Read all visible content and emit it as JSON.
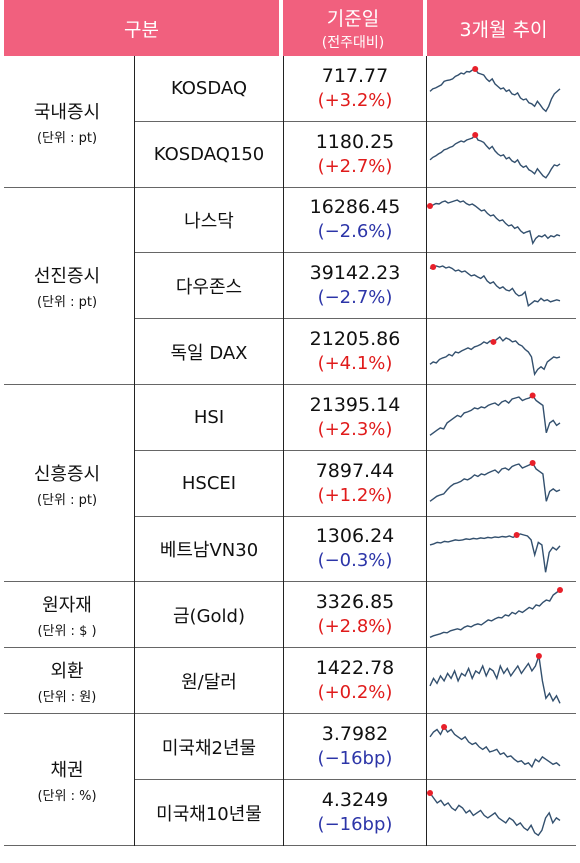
{
  "header": {
    "category": "구분",
    "base_date": "기준일",
    "base_date_sub": "(전주대비)",
    "trend": "3개월 추이"
  },
  "colors": {
    "header_bg": "#f1607e",
    "up": "#e01b1b",
    "down": "#2c35a8",
    "spark_line": "#33506e",
    "spark_dot": "#e8202a"
  },
  "groups": [
    {
      "name": "국내증시",
      "unit": "(단위 : pt)",
      "rows": [
        {
          "name": "KOSDAQ",
          "value": "717.77",
          "change": "(+3.2%)",
          "dir": "up",
          "trend": [
            0.55,
            0.5,
            0.48,
            0.45,
            0.42,
            0.35,
            0.33,
            0.32,
            0.3,
            0.25,
            0.22,
            0.18,
            0.2,
            0.15,
            0.16,
            0.12,
            0.1,
            0.18,
            0.2,
            0.22,
            0.3,
            0.35,
            0.3,
            0.4,
            0.45,
            0.5,
            0.48,
            0.55,
            0.52,
            0.6,
            0.62,
            0.58,
            0.68,
            0.72,
            0.7,
            0.78,
            0.8,
            0.85,
            0.75,
            0.82,
            0.9,
            0.95,
            0.85,
            0.7,
            0.6,
            0.55,
            0.5
          ],
          "peak_index": 16
        },
        {
          "name": "KOSDAQ150",
          "value": "1180.25",
          "change": "(+2.7%)",
          "dir": "up",
          "trend": [
            0.6,
            0.55,
            0.52,
            0.48,
            0.45,
            0.4,
            0.38,
            0.35,
            0.33,
            0.28,
            0.25,
            0.22,
            0.24,
            0.2,
            0.18,
            0.16,
            0.1,
            0.2,
            0.22,
            0.25,
            0.32,
            0.38,
            0.33,
            0.42,
            0.48,
            0.52,
            0.5,
            0.58,
            0.55,
            0.62,
            0.65,
            0.6,
            0.7,
            0.75,
            0.72,
            0.8,
            0.83,
            0.88,
            0.78,
            0.85,
            0.92,
            0.96,
            0.88,
            0.78,
            0.7,
            0.72,
            0.68
          ],
          "peak_index": 16
        }
      ]
    },
    {
      "name": "선진증시",
      "unit": "(단위 : pt)",
      "rows": [
        {
          "name": "나스닥",
          "value": "16286.45",
          "change": "(−2.6%)",
          "dir": "down",
          "trend": [
            0.2,
            0.18,
            0.15,
            0.16,
            0.12,
            0.1,
            0.14,
            0.12,
            0.1,
            0.08,
            0.12,
            0.1,
            0.15,
            0.18,
            0.16,
            0.2,
            0.25,
            0.3,
            0.28,
            0.35,
            0.4,
            0.38,
            0.45,
            0.5,
            0.48,
            0.55,
            0.6,
            0.58,
            0.65,
            0.62,
            0.7,
            0.75,
            0.72,
            0.7,
            0.95,
            0.85,
            0.8,
            0.82,
            0.78,
            0.85,
            0.8,
            0.82,
            0.78,
            0.8
          ],
          "peak_index": 0
        },
        {
          "name": "다우존스",
          "value": "39142.23",
          "change": "(−2.7%)",
          "dir": "down",
          "trend": [
            0.15,
            0.12,
            0.1,
            0.12,
            0.1,
            0.14,
            0.12,
            0.15,
            0.2,
            0.18,
            0.22,
            0.2,
            0.25,
            0.3,
            0.28,
            0.32,
            0.35,
            0.3,
            0.4,
            0.45,
            0.42,
            0.5,
            0.55,
            0.52,
            0.58,
            0.6,
            0.55,
            0.65,
            0.7,
            0.68,
            0.62,
            0.9,
            0.85,
            0.8,
            0.82,
            0.75,
            0.8,
            0.78,
            0.82,
            0.8,
            0.78,
            0.8
          ],
          "peak_index": 1
        },
        {
          "name": "독일 DAX",
          "value": "21205.86",
          "change": "(+4.1%)",
          "dir": "up",
          "trend": [
            0.75,
            0.7,
            0.72,
            0.65,
            0.62,
            0.6,
            0.55,
            0.58,
            0.5,
            0.52,
            0.48,
            0.45,
            0.42,
            0.45,
            0.4,
            0.38,
            0.35,
            0.3,
            0.33,
            0.28,
            0.3,
            0.25,
            0.2,
            0.28,
            0.22,
            0.25,
            0.3,
            0.28,
            0.35,
            0.38,
            0.45,
            0.5,
            0.6,
            0.95,
            0.85,
            0.8,
            0.85,
            0.7,
            0.65,
            0.6,
            0.62,
            0.6
          ],
          "peak_index": 20
        }
      ]
    },
    {
      "name": "신흥증시",
      "unit": "(단위 : pt)",
      "rows": [
        {
          "name": "HSI",
          "value": "21395.14",
          "change": "(+2.3%)",
          "dir": "up",
          "trend": [
            0.85,
            0.8,
            0.75,
            0.7,
            0.72,
            0.6,
            0.55,
            0.5,
            0.45,
            0.48,
            0.4,
            0.38,
            0.35,
            0.3,
            0.32,
            0.28,
            0.3,
            0.25,
            0.22,
            0.2,
            0.25,
            0.18,
            0.15,
            0.2,
            0.12,
            0.1,
            0.08,
            0.15,
            0.12,
            0.1,
            0.05,
            0.15,
            0.2,
            0.25,
            0.8,
            0.6,
            0.55,
            0.65,
            0.6
          ],
          "peak_index": 30
        },
        {
          "name": "HSCEI",
          "value": "7897.44",
          "change": "(+1.2%)",
          "dir": "up",
          "trend": [
            0.85,
            0.8,
            0.75,
            0.72,
            0.7,
            0.62,
            0.55,
            0.5,
            0.48,
            0.45,
            0.4,
            0.42,
            0.38,
            0.32,
            0.35,
            0.3,
            0.32,
            0.28,
            0.25,
            0.22,
            0.28,
            0.2,
            0.18,
            0.22,
            0.15,
            0.12,
            0.1,
            0.18,
            0.15,
            0.12,
            0.08,
            0.2,
            0.25,
            0.3,
            0.85,
            0.65,
            0.6,
            0.65,
            0.62
          ],
          "peak_index": 30
        },
        {
          "name": "베트남VN30",
          "value": "1306.24",
          "change": "(−0.3%)",
          "dir": "down",
          "trend": [
            0.4,
            0.38,
            0.35,
            0.36,
            0.33,
            0.34,
            0.32,
            0.3,
            0.31,
            0.3,
            0.28,
            0.29,
            0.27,
            0.28,
            0.26,
            0.27,
            0.25,
            0.26,
            0.24,
            0.25,
            0.23,
            0.24,
            0.22,
            0.25,
            0.2,
            0.18,
            0.2,
            0.22,
            0.3,
            0.6,
            0.35,
            0.4,
            0.95,
            0.55,
            0.45,
            0.5,
            0.42
          ],
          "peak_index": 24
        }
      ]
    },
    {
      "name": "원자재",
      "unit": "(단위 : $ )",
      "rows": [
        {
          "name": "금(Gold)",
          "value": "3326.85",
          "change": "(+2.8%)",
          "dir": "up",
          "trend": [
            0.95,
            0.92,
            0.9,
            0.88,
            0.85,
            0.86,
            0.82,
            0.8,
            0.78,
            0.8,
            0.75,
            0.72,
            0.74,
            0.7,
            0.68,
            0.7,
            0.65,
            0.6,
            0.62,
            0.58,
            0.55,
            0.56,
            0.5,
            0.52,
            0.45,
            0.48,
            0.42,
            0.45,
            0.4,
            0.35,
            0.38,
            0.3,
            0.32,
            0.25,
            0.2,
            0.22,
            0.1,
            0.05,
            0.0
          ],
          "peak_index": 38
        }
      ]
    },
    {
      "name": "외환",
      "unit": "(단위 : 원)",
      "rows": [
        {
          "name": "원/달러",
          "value": "1422.78",
          "change": "(+0.2%)",
          "dir": "up",
          "trend": [
            0.6,
            0.45,
            0.55,
            0.4,
            0.5,
            0.35,
            0.45,
            0.3,
            0.5,
            0.35,
            0.4,
            0.25,
            0.45,
            0.3,
            0.35,
            0.2,
            0.4,
            0.25,
            0.3,
            0.45,
            0.2,
            0.35,
            0.25,
            0.4,
            0.3,
            0.2,
            0.35,
            0.25,
            0.15,
            0.3,
            0.2,
            0.0,
            0.5,
            0.85,
            0.75,
            0.9,
            0.8,
            0.95
          ],
          "peak_index": 31
        }
      ]
    },
    {
      "name": "채권",
      "unit": "(단위 : %)",
      "rows": [
        {
          "name": "미국채2년물",
          "value": "3.7982",
          "change": "(−16bp)",
          "dir": "down",
          "trend": [
            0.3,
            0.2,
            0.15,
            0.25,
            0.1,
            0.2,
            0.15,
            0.25,
            0.3,
            0.35,
            0.3,
            0.4,
            0.45,
            0.42,
            0.5,
            0.55,
            0.5,
            0.6,
            0.58,
            0.55,
            0.65,
            0.62,
            0.7,
            0.68,
            0.75,
            0.8,
            0.78,
            0.85,
            0.82,
            0.9,
            0.75,
            0.8,
            0.7,
            0.75,
            0.8,
            0.85,
            0.82,
            0.88
          ],
          "peak_index": 4
        },
        {
          "name": "미국채10년물",
          "value": "4.3249",
          "change": "(−16bp)",
          "dir": "down",
          "trend": [
            0.1,
            0.2,
            0.3,
            0.25,
            0.35,
            0.3,
            0.4,
            0.45,
            0.35,
            0.4,
            0.5,
            0.45,
            0.55,
            0.5,
            0.45,
            0.55,
            0.6,
            0.55,
            0.5,
            0.6,
            0.65,
            0.7,
            0.6,
            0.65,
            0.75,
            0.7,
            0.8,
            0.85,
            0.75,
            0.9,
            0.95,
            0.85,
            0.6,
            0.5,
            0.7,
            0.6,
            0.65
          ],
          "peak_index": 0
        }
      ]
    }
  ]
}
